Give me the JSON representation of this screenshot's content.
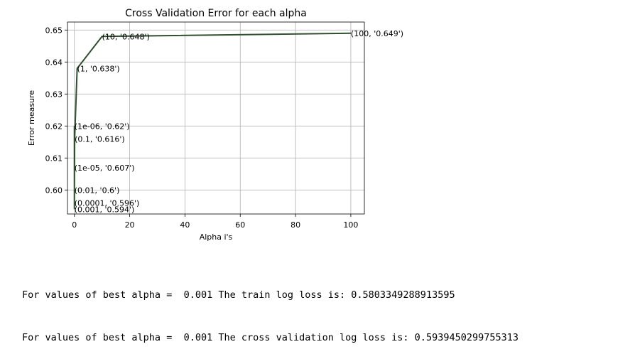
{
  "chart_data": {
    "type": "line",
    "title": "Cross Validation Error for each alpha",
    "xlabel": "Alpha i's",
    "ylabel": "Error measure",
    "xlim": [
      -2.5,
      104.9
    ],
    "ylim": [
      0.5925,
      0.6525
    ],
    "xticks": [
      0,
      20,
      40,
      60,
      80,
      100
    ],
    "yticks": [
      0.6,
      0.61,
      0.62,
      0.63,
      0.64,
      0.65
    ],
    "xtick_labels": [
      "0",
      "20",
      "40",
      "60",
      "80",
      "100"
    ],
    "ytick_labels": [
      "0.60",
      "0.61",
      "0.62",
      "0.63",
      "0.64",
      "0.65"
    ],
    "grid": true,
    "line_color": "#2f4f2f",
    "points": [
      {
        "x": 1e-06,
        "y": 0.62,
        "label": "(1e-06, '0.62')"
      },
      {
        "x": 1e-05,
        "y": 0.607,
        "label": "(1e-05, '0.607')"
      },
      {
        "x": 0.0001,
        "y": 0.596,
        "label": "(0.0001, '0.596')"
      },
      {
        "x": 0.001,
        "y": 0.594,
        "label": "(0.001, '0.594')"
      },
      {
        "x": 0.01,
        "y": 0.6,
        "label": "(0.01, '0.6')"
      },
      {
        "x": 0.1,
        "y": 0.616,
        "label": "(0.1, '0.616')"
      },
      {
        "x": 1,
        "y": 0.638,
        "label": "(1, '0.638')"
      },
      {
        "x": 10,
        "y": 0.648,
        "label": "(10, '0.648')"
      },
      {
        "x": 100,
        "y": 0.649,
        "label": "(100, '0.649')"
      }
    ]
  },
  "output": {
    "line1": "For values of best alpha =  0.001 The train log loss is: 0.5803349288913595",
    "line2": "For values of best alpha =  0.001 The cross validation log loss is: 0.5939450299755313"
  }
}
